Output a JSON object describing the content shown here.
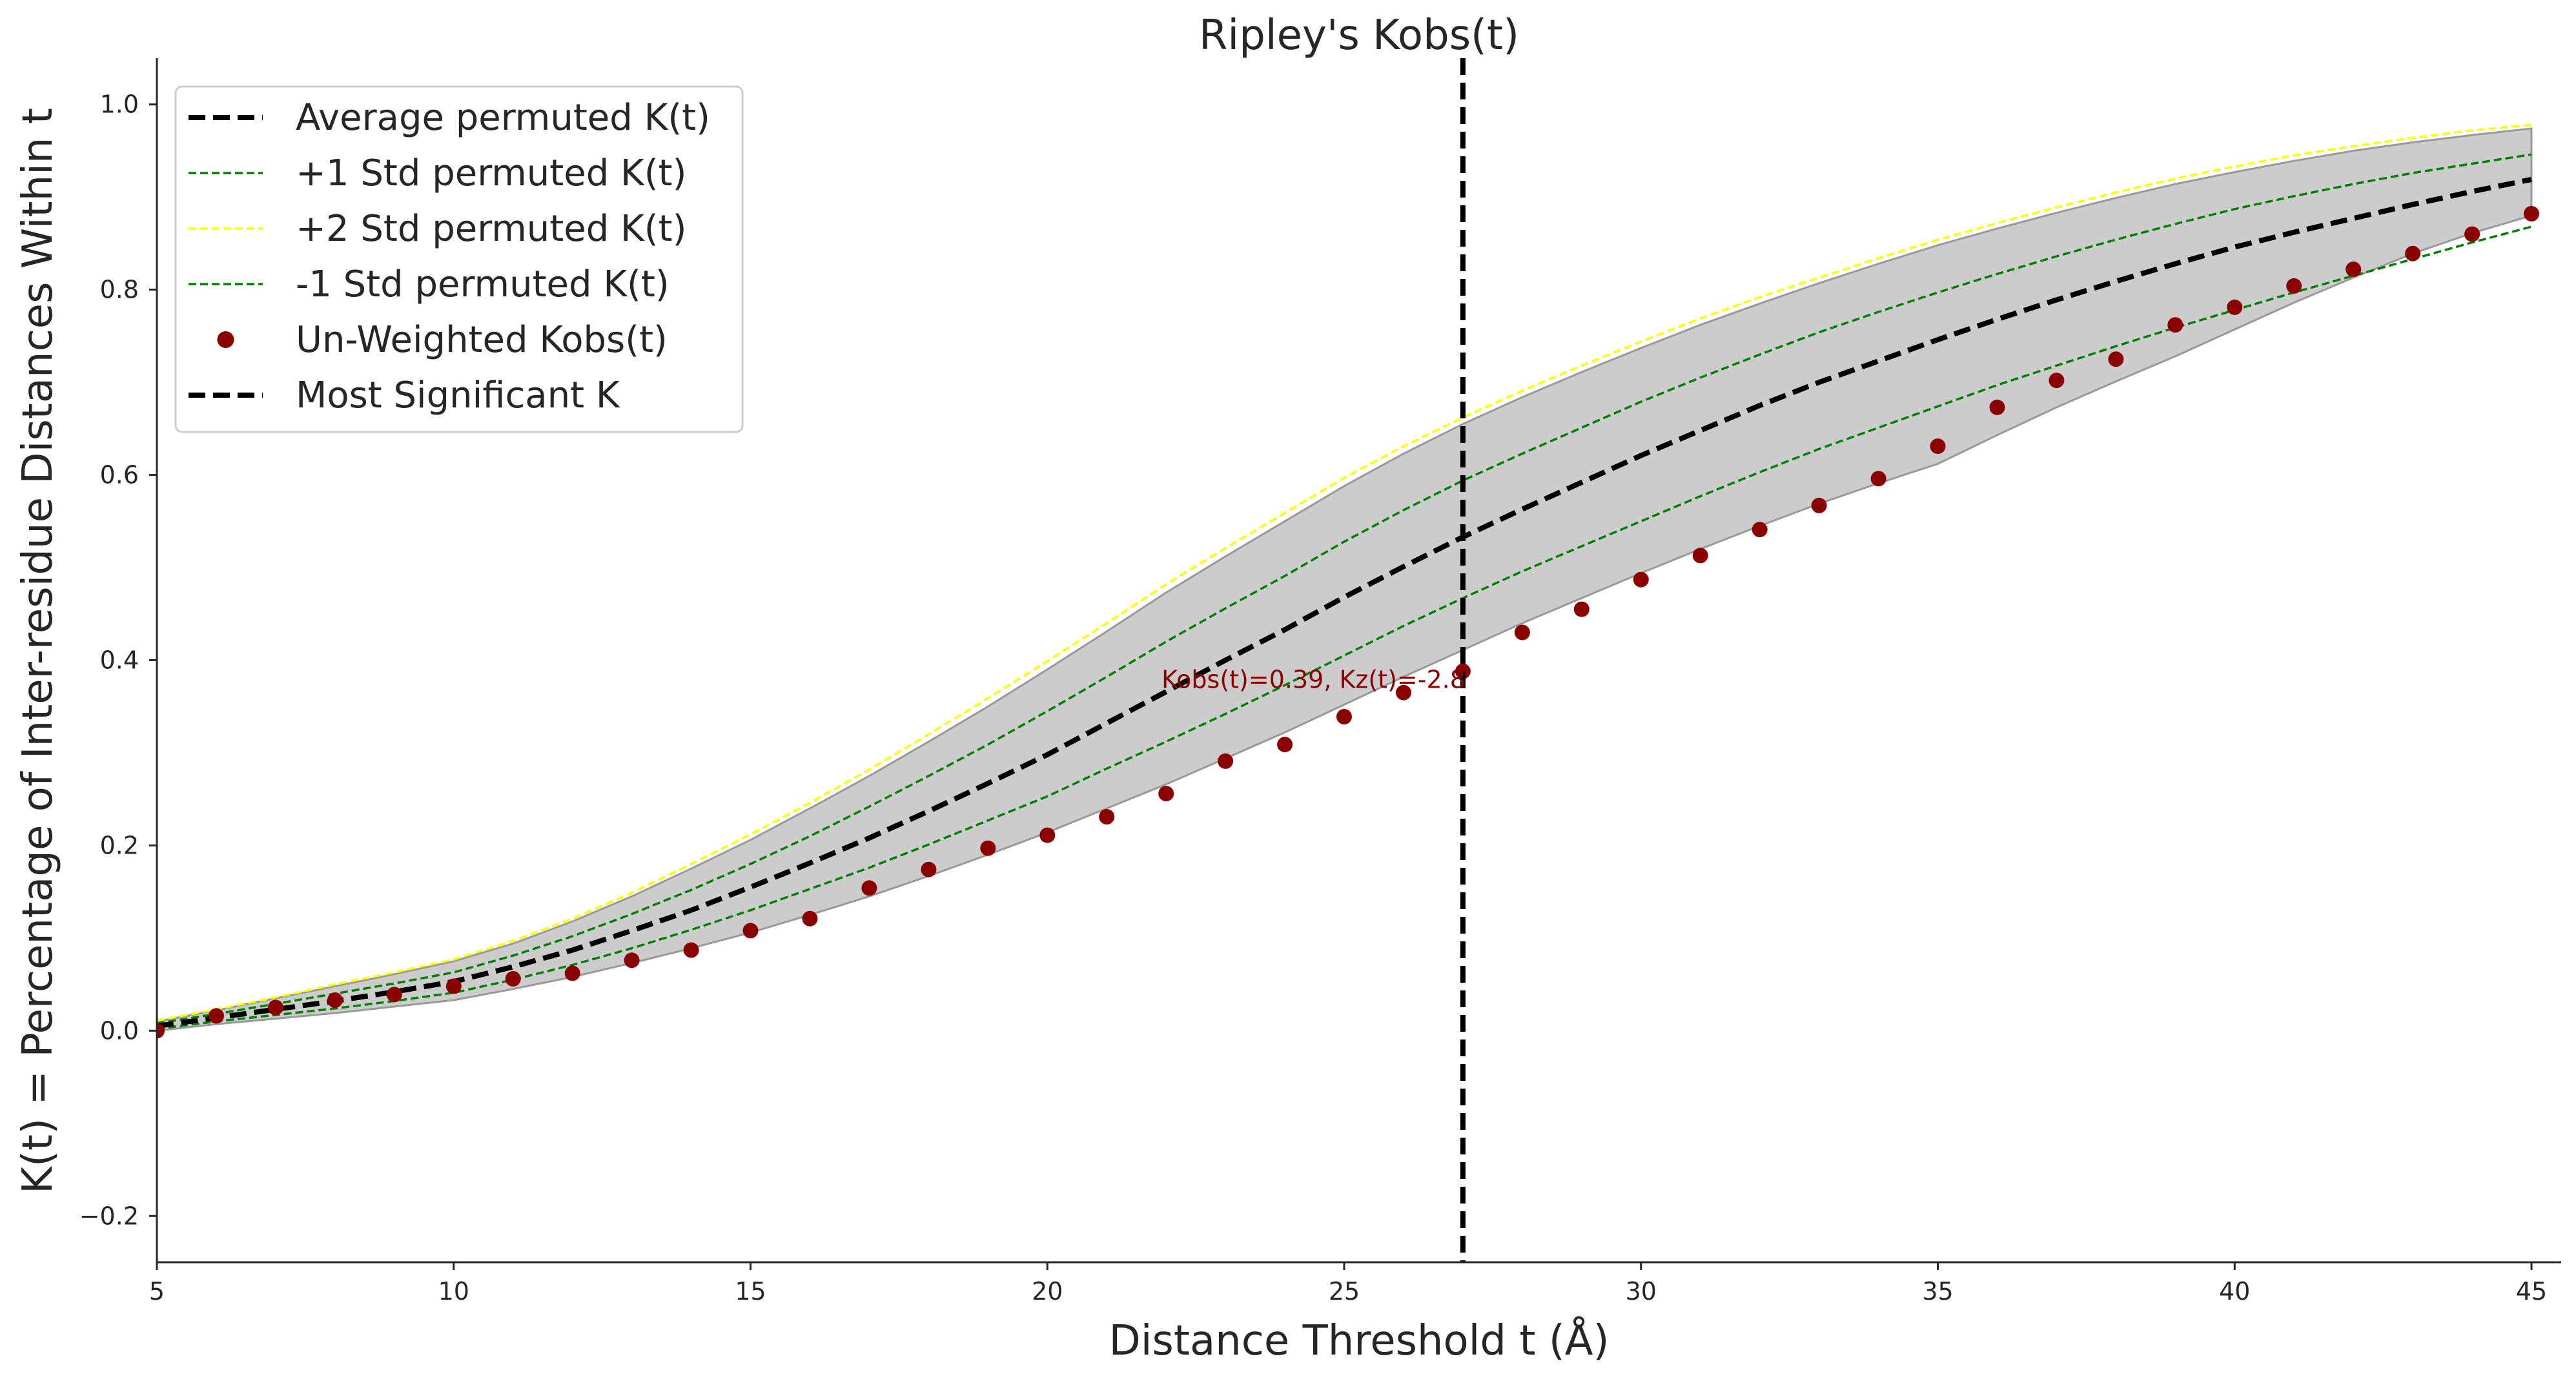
{
  "chart_data": {
    "type": "line",
    "title": "Ripley's Kobs(t)",
    "xlabel": "Distance Threshold t (Å)",
    "ylabel": "K(t) = Percentage of Inter-residue Distances Within t",
    "xlim": [
      5,
      45.5
    ],
    "ylim": [
      -0.25,
      1.05
    ],
    "xticks": [
      5,
      10,
      15,
      20,
      25,
      30,
      35,
      40,
      45
    ],
    "yticks": [
      -0.2,
      0.0,
      0.2,
      0.4,
      0.6,
      0.8,
      1.0
    ],
    "ytick_labels": [
      "−0.2",
      "0.0",
      "0.2",
      "0.4",
      "0.6",
      "0.8",
      "1.0"
    ],
    "grid": false,
    "legend_position": "top-left",
    "x": [
      5,
      6,
      7,
      8,
      9,
      10,
      11,
      12,
      13,
      14,
      15,
      16,
      17,
      18,
      19,
      20,
      21,
      22,
      23,
      24,
      25,
      26,
      27,
      28,
      29,
      30,
      31,
      32,
      33,
      34,
      35,
      36,
      37,
      38,
      39,
      40,
      41,
      42,
      43,
      44,
      45
    ],
    "band": {
      "color": "#cccccc",
      "edge_color": "#999999",
      "upper": [
        0.01,
        0.022,
        0.035,
        0.048,
        0.061,
        0.075,
        0.094,
        0.118,
        0.145,
        0.175,
        0.206,
        0.24,
        0.275,
        0.312,
        0.35,
        0.39,
        0.431,
        0.473,
        0.512,
        0.55,
        0.588,
        0.623,
        0.655,
        0.684,
        0.711,
        0.737,
        0.762,
        0.785,
        0.807,
        0.828,
        0.848,
        0.866,
        0.883,
        0.899,
        0.914,
        0.927,
        0.939,
        0.95,
        0.959,
        0.967,
        0.974
      ],
      "lower": [
        0.0,
        0.007,
        0.013,
        0.019,
        0.026,
        0.033,
        0.045,
        0.058,
        0.073,
        0.089,
        0.106,
        0.125,
        0.145,
        0.167,
        0.19,
        0.214,
        0.24,
        0.266,
        0.294,
        0.322,
        0.352,
        0.382,
        0.411,
        0.44,
        0.467,
        0.494,
        0.52,
        0.545,
        0.569,
        0.591,
        0.612,
        0.643,
        0.673,
        0.701,
        0.728,
        0.757,
        0.786,
        0.813,
        0.839,
        0.861,
        0.88
      ]
    },
    "series": [
      {
        "name": "Average permuted K(t)",
        "style": "dashed",
        "width": 8,
        "color": "#000000",
        "values": [
          0.005,
          0.014,
          0.023,
          0.032,
          0.042,
          0.053,
          0.069,
          0.087,
          0.108,
          0.13,
          0.155,
          0.181,
          0.208,
          0.237,
          0.267,
          0.298,
          0.332,
          0.366,
          0.4,
          0.433,
          0.468,
          0.501,
          0.533,
          0.563,
          0.592,
          0.621,
          0.648,
          0.675,
          0.7,
          0.723,
          0.746,
          0.768,
          0.789,
          0.809,
          0.828,
          0.846,
          0.862,
          0.877,
          0.892,
          0.906,
          0.919
        ]
      },
      {
        "name": "+1 Std permuted K(t)",
        "style": "dashed",
        "width": 3.5,
        "color": "#008000",
        "values": [
          0.008,
          0.018,
          0.029,
          0.04,
          0.051,
          0.063,
          0.081,
          0.102,
          0.126,
          0.152,
          0.18,
          0.21,
          0.242,
          0.275,
          0.309,
          0.345,
          0.382,
          0.42,
          0.456,
          0.491,
          0.528,
          0.562,
          0.594,
          0.623,
          0.651,
          0.679,
          0.705,
          0.73,
          0.754,
          0.776,
          0.797,
          0.817,
          0.836,
          0.854,
          0.871,
          0.887,
          0.901,
          0.914,
          0.926,
          0.936,
          0.946
        ]
      },
      {
        "name": "+2 Std permuted K(t)",
        "style": "dashed",
        "width": 3.5,
        "color": "#ffff00",
        "values": [
          0.011,
          0.023,
          0.036,
          0.05,
          0.063,
          0.077,
          0.097,
          0.121,
          0.149,
          0.18,
          0.212,
          0.246,
          0.282,
          0.32,
          0.359,
          0.399,
          0.44,
          0.482,
          0.521,
          0.559,
          0.597,
          0.631,
          0.662,
          0.691,
          0.718,
          0.744,
          0.769,
          0.792,
          0.813,
          0.834,
          0.854,
          0.872,
          0.889,
          0.905,
          0.92,
          0.933,
          0.945,
          0.955,
          0.964,
          0.972,
          0.978
        ]
      },
      {
        "name": "-1 Std permuted K(t)",
        "style": "dashed",
        "width": 3.5,
        "color": "#008000",
        "values": [
          0.002,
          0.01,
          0.017,
          0.024,
          0.032,
          0.041,
          0.055,
          0.071,
          0.089,
          0.109,
          0.13,
          0.153,
          0.176,
          0.201,
          0.227,
          0.253,
          0.283,
          0.312,
          0.342,
          0.373,
          0.405,
          0.437,
          0.467,
          0.496,
          0.523,
          0.55,
          0.577,
          0.603,
          0.628,
          0.651,
          0.674,
          0.697,
          0.718,
          0.739,
          0.759,
          0.778,
          0.797,
          0.815,
          0.833,
          0.851,
          0.868
        ]
      }
    ],
    "scatter": {
      "name": "Un-Weighted Kobs(t)",
      "color": "#8b0000",
      "x": [
        5,
        6,
        7,
        8,
        9,
        10,
        11,
        12,
        13,
        14,
        15,
        16,
        17,
        18,
        19,
        20,
        21,
        22,
        23,
        24,
        25,
        26,
        27,
        28,
        29,
        30,
        31,
        32,
        33,
        34,
        35,
        36,
        37,
        38,
        39,
        40,
        41,
        42,
        43,
        44,
        45
      ],
      "y": [
        0.0,
        0.016,
        0.025,
        0.033,
        0.039,
        0.048,
        0.056,
        0.062,
        0.076,
        0.087,
        0.108,
        0.121,
        0.154,
        0.174,
        0.197,
        0.211,
        0.231,
        0.256,
        0.291,
        0.309,
        0.339,
        0.365,
        0.388,
        0.43,
        0.455,
        0.487,
        0.513,
        0.541,
        0.567,
        0.596,
        0.631,
        0.673,
        0.702,
        0.725,
        0.762,
        0.781,
        0.804,
        0.822,
        0.839,
        0.86,
        0.882
      ]
    },
    "vline": {
      "name": "Most Significant K",
      "x": 27,
      "color": "#000000",
      "style": "dashed"
    },
    "annotation": {
      "text": "Kobs(t)=0.39, Kz(t)=-2.8",
      "x": 27,
      "y": 0.388,
      "color": "#8b0000"
    }
  }
}
